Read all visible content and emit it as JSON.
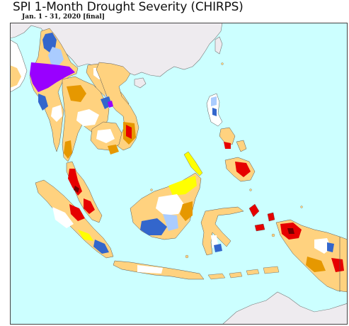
{
  "map": {
    "title": "SPI 1-Month Drought Severity (CHIRPS)",
    "subtitle": "Jan. 1 - 31, 2020 [final]",
    "colors": {
      "ocean": "#ccffff",
      "outside_land": "#eeebef",
      "normal": "#ffffff",
      "abnormally_dry": "#ffff00",
      "moderately_dry": "#ffd27f",
      "severely_dry": "#e69800",
      "extremely_dry": "#e60000",
      "exceptionally_dry": "#730000",
      "abnormally_wet": "#aaccff",
      "very_wet": "#3366cc",
      "extremely_wet": "#9900ff",
      "border": "#555555"
    }
  }
}
